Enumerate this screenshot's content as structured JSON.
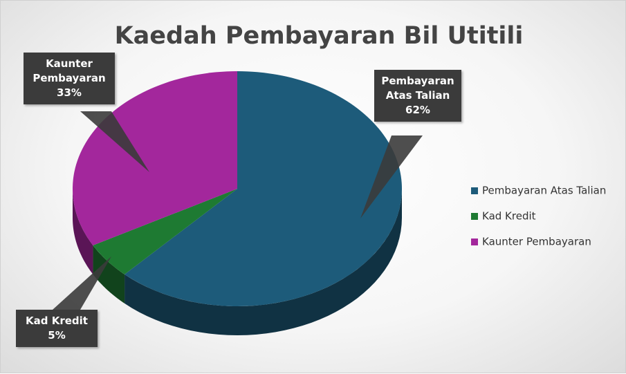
{
  "chart_data": {
    "type": "pie",
    "title": "Kaedah Pembayaran Bil Utitili",
    "categories": [
      "Pembayaran Atas Talian",
      "Kad Kredit",
      "Kaunter Pembayaran"
    ],
    "values": [
      62,
      5,
      33
    ],
    "value_labels": [
      "62%",
      "5%",
      "33%"
    ],
    "colors": [
      "#1d5b7a",
      "#1e7a32",
      "#a3279c"
    ],
    "legend": "right"
  }
}
